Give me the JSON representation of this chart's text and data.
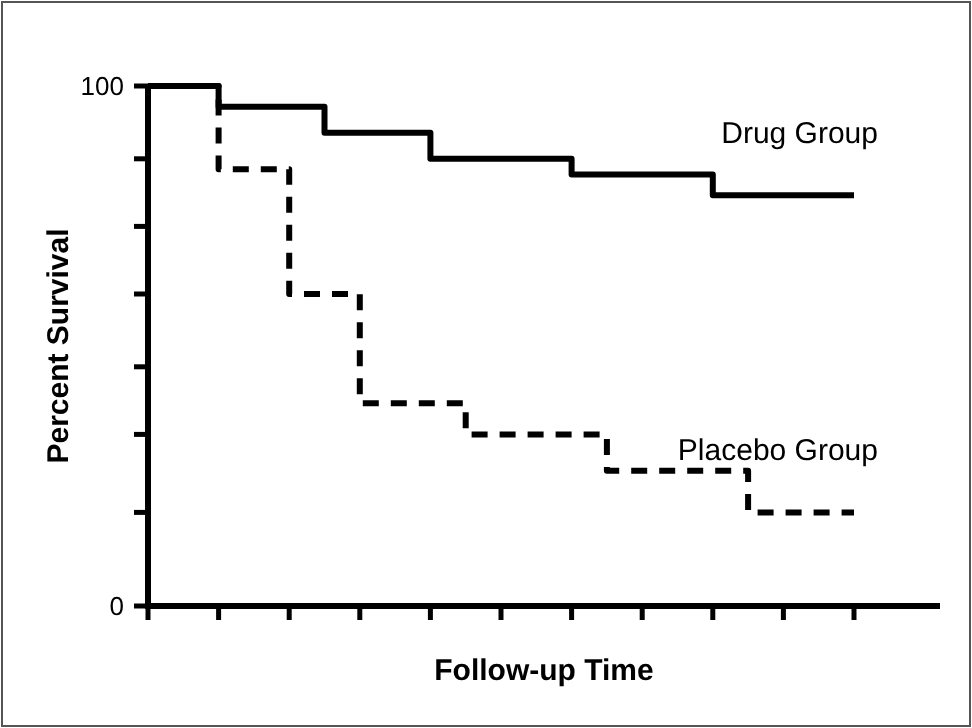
{
  "chart_data": {
    "type": "step",
    "xlabel": "Follow-up Time",
    "ylabel": "Percent Survival",
    "categories": [
      null,
      null,
      null,
      null,
      null,
      null,
      null,
      null,
      null,
      null,
      null,
      null,
      null,
      null,
      null,
      null,
      null,
      null,
      null,
      null,
      null
    ],
    "ylim": [
      0,
      100
    ],
    "yticks": [
      0,
      {
        "value": 18,
        "label": null
      },
      {
        "value": 33,
        "label": null
      },
      {
        "value": 46,
        "label": null
      },
      {
        "value": 60,
        "label": null
      },
      {
        "value": 73,
        "label": null
      },
      {
        "value": 86,
        "label": null
      },
      100
    ],
    "legend": false,
    "grid": false,
    "series": [
      {
        "name": "Drug Group",
        "color": "#000000",
        "line_style": "solid",
        "values": [
          100,
          100,
          96,
          96,
          96,
          91,
          91,
          91,
          86,
          86,
          86,
          86,
          83,
          83,
          83,
          83,
          79,
          79,
          79,
          79,
          79
        ]
      },
      {
        "name": "Placebo Group",
        "color": "#000000",
        "line_style": "dashed",
        "values": [
          100,
          100,
          84,
          84,
          60,
          60,
          39,
          39,
          39,
          33,
          33,
          33,
          33,
          26,
          26,
          26,
          26,
          18,
          18,
          18,
          18
        ]
      }
    ]
  }
}
